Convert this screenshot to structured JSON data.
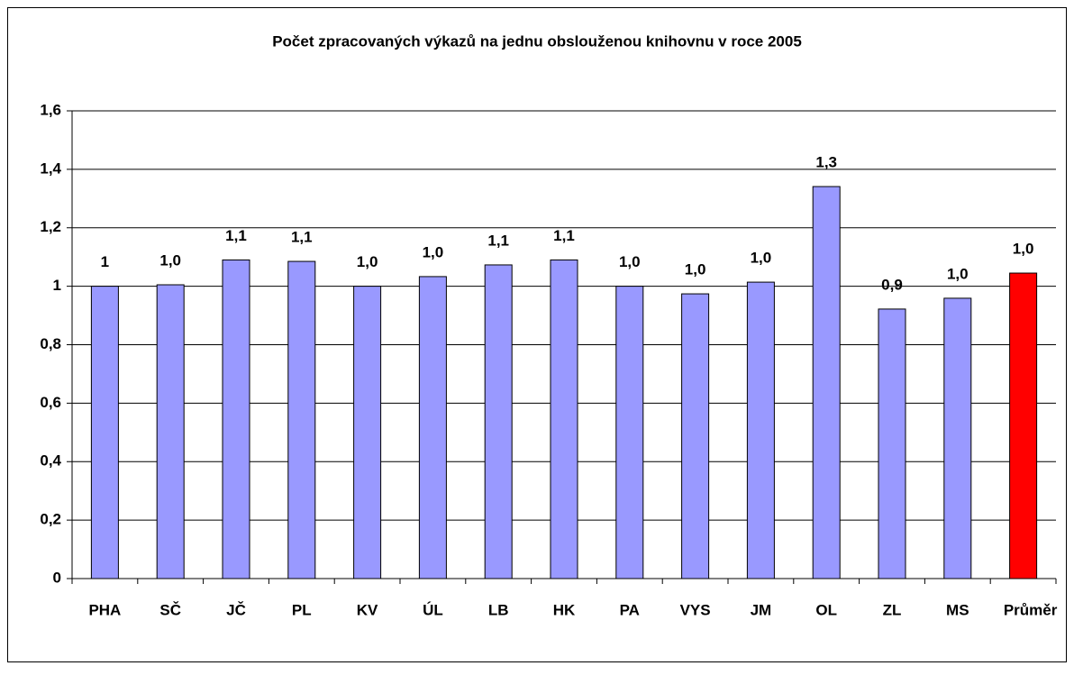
{
  "chart_data": {
    "type": "bar",
    "title": "Počet zpracovaných výkazů na jednu obslouženou knihovnu v roce 2005",
    "categories": [
      "PHA",
      "SČ",
      "JČ",
      "PL",
      "KV",
      "ÚL",
      "LB",
      "HK",
      "PA",
      "VYS",
      "JM",
      "OL",
      "ZL",
      "MS",
      "Průměr"
    ],
    "values": [
      1.0,
      1.005,
      1.09,
      1.085,
      1.0,
      1.033,
      1.073,
      1.09,
      1.0,
      0.974,
      1.014,
      1.341,
      0.922,
      0.959,
      1.045
    ],
    "value_labels": [
      "1",
      "1,0",
      "1,1",
      "1,1",
      "1,0",
      "1,0",
      "1,1",
      "1,1",
      "1,0",
      "1,0",
      "1,0",
      "1,3",
      "0,9",
      "1,0",
      "1,0"
    ],
    "color": "#9999ff",
    "colors": [
      "#9999ff",
      "#9999ff",
      "#9999ff",
      "#9999ff",
      "#9999ff",
      "#9999ff",
      "#9999ff",
      "#9999ff",
      "#9999ff",
      "#9999ff",
      "#9999ff",
      "#9999ff",
      "#9999ff",
      "#9999ff",
      "#ff0000"
    ],
    "ylim": [
      0,
      1.6
    ],
    "yticks": [
      0,
      {
        "value": 0.2,
        "label": "0,2"
      },
      {
        "value": 0.4,
        "label": "0,4"
      },
      {
        "value": 0.6,
        "label": "0,6"
      },
      {
        "value": 0.8,
        "label": "0,8"
      },
      1,
      {
        "value": 1.2,
        "label": "1,2"
      },
      {
        "value": 1.4,
        "label": "1,4"
      },
      {
        "value": 1.6,
        "label": "1,6"
      }
    ],
    "grid": true
  }
}
